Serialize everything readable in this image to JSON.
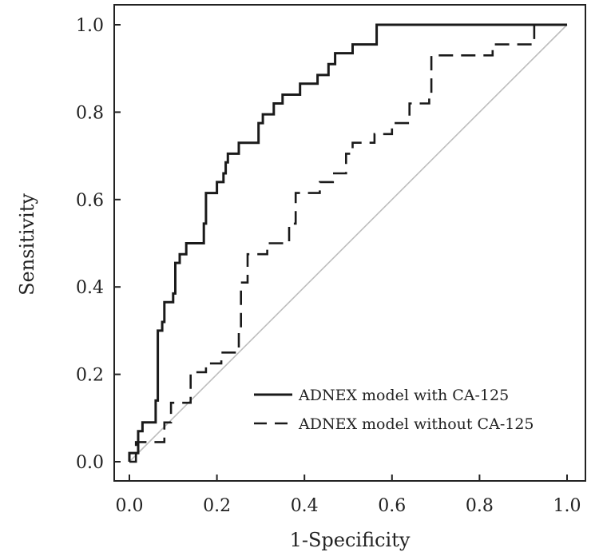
{
  "chart_data": {
    "type": "line",
    "title": "",
    "xlabel": "1-Specificity",
    "ylabel": "Sensitivity",
    "xlim": [
      0,
      1
    ],
    "ylim": [
      0,
      1
    ],
    "x_ticks": [
      "0.0",
      "0.2",
      "0.4",
      "0.6",
      "0.8",
      "1.0"
    ],
    "y_ticks": [
      "0.0",
      "0.2",
      "0.4",
      "0.6",
      "0.8",
      "1.0"
    ],
    "grid": false,
    "legend_position": "bottom-right",
    "reference_line": [
      [
        0,
        0
      ],
      [
        1,
        1
      ]
    ],
    "series": [
      {
        "name": "ADNEX model with CA-125",
        "style": "solid",
        "points": [
          [
            0,
            0
          ],
          [
            0,
            0.02
          ],
          [
            0.02,
            0.02
          ],
          [
            0.02,
            0.07
          ],
          [
            0.03,
            0.07
          ],
          [
            0.03,
            0.09
          ],
          [
            0.06,
            0.09
          ],
          [
            0.06,
            0.14
          ],
          [
            0.065,
            0.14
          ],
          [
            0.065,
            0.3
          ],
          [
            0.075,
            0.3
          ],
          [
            0.075,
            0.32
          ],
          [
            0.08,
            0.32
          ],
          [
            0.08,
            0.365
          ],
          [
            0.1,
            0.365
          ],
          [
            0.1,
            0.385
          ],
          [
            0.105,
            0.385
          ],
          [
            0.105,
            0.455
          ],
          [
            0.115,
            0.455
          ],
          [
            0.115,
            0.475
          ],
          [
            0.13,
            0.475
          ],
          [
            0.13,
            0.5
          ],
          [
            0.17,
            0.5
          ],
          [
            0.17,
            0.545
          ],
          [
            0.175,
            0.545
          ],
          [
            0.175,
            0.615
          ],
          [
            0.2,
            0.615
          ],
          [
            0.2,
            0.64
          ],
          [
            0.215,
            0.64
          ],
          [
            0.215,
            0.66
          ],
          [
            0.22,
            0.66
          ],
          [
            0.22,
            0.685
          ],
          [
            0.225,
            0.685
          ],
          [
            0.225,
            0.705
          ],
          [
            0.25,
            0.705
          ],
          [
            0.25,
            0.73
          ],
          [
            0.295,
            0.73
          ],
          [
            0.295,
            0.775
          ],
          [
            0.305,
            0.775
          ],
          [
            0.305,
            0.795
          ],
          [
            0.33,
            0.795
          ],
          [
            0.33,
            0.82
          ],
          [
            0.35,
            0.82
          ],
          [
            0.35,
            0.84
          ],
          [
            0.39,
            0.84
          ],
          [
            0.39,
            0.865
          ],
          [
            0.43,
            0.865
          ],
          [
            0.43,
            0.885
          ],
          [
            0.455,
            0.885
          ],
          [
            0.455,
            0.91
          ],
          [
            0.47,
            0.91
          ],
          [
            0.47,
            0.935
          ],
          [
            0.51,
            0.935
          ],
          [
            0.51,
            0.955
          ],
          [
            0.565,
            0.955
          ],
          [
            0.565,
            1.0
          ],
          [
            1.0,
            1.0
          ]
        ]
      },
      {
        "name": "ADNEX model without CA-125",
        "style": "dashed",
        "points": [
          [
            0,
            0
          ],
          [
            0.015,
            0
          ],
          [
            0.015,
            0.045
          ],
          [
            0.08,
            0.045
          ],
          [
            0.08,
            0.09
          ],
          [
            0.095,
            0.09
          ],
          [
            0.095,
            0.135
          ],
          [
            0.14,
            0.135
          ],
          [
            0.14,
            0.205
          ],
          [
            0.175,
            0.205
          ],
          [
            0.175,
            0.225
          ],
          [
            0.21,
            0.225
          ],
          [
            0.21,
            0.25
          ],
          [
            0.25,
            0.25
          ],
          [
            0.25,
            0.295
          ],
          [
            0.255,
            0.295
          ],
          [
            0.255,
            0.41
          ],
          [
            0.27,
            0.41
          ],
          [
            0.27,
            0.475
          ],
          [
            0.315,
            0.475
          ],
          [
            0.315,
            0.5
          ],
          [
            0.365,
            0.5
          ],
          [
            0.365,
            0.545
          ],
          [
            0.38,
            0.545
          ],
          [
            0.38,
            0.615
          ],
          [
            0.435,
            0.615
          ],
          [
            0.435,
            0.64
          ],
          [
            0.465,
            0.64
          ],
          [
            0.465,
            0.66
          ],
          [
            0.495,
            0.66
          ],
          [
            0.495,
            0.705
          ],
          [
            0.51,
            0.705
          ],
          [
            0.51,
            0.73
          ],
          [
            0.56,
            0.73
          ],
          [
            0.56,
            0.75
          ],
          [
            0.6,
            0.75
          ],
          [
            0.6,
            0.775
          ],
          [
            0.64,
            0.775
          ],
          [
            0.64,
            0.82
          ],
          [
            0.685,
            0.82
          ],
          [
            0.685,
            0.84
          ],
          [
            0.69,
            0.84
          ],
          [
            0.69,
            0.93
          ],
          [
            0.83,
            0.93
          ],
          [
            0.83,
            0.955
          ],
          [
            0.925,
            0.955
          ],
          [
            0.925,
            1.0
          ],
          [
            1.0,
            1.0
          ]
        ]
      }
    ]
  },
  "style": {
    "line_color": "#1a1a1a",
    "reference_color": "#bdbdbd",
    "axis_color": "#222222"
  }
}
